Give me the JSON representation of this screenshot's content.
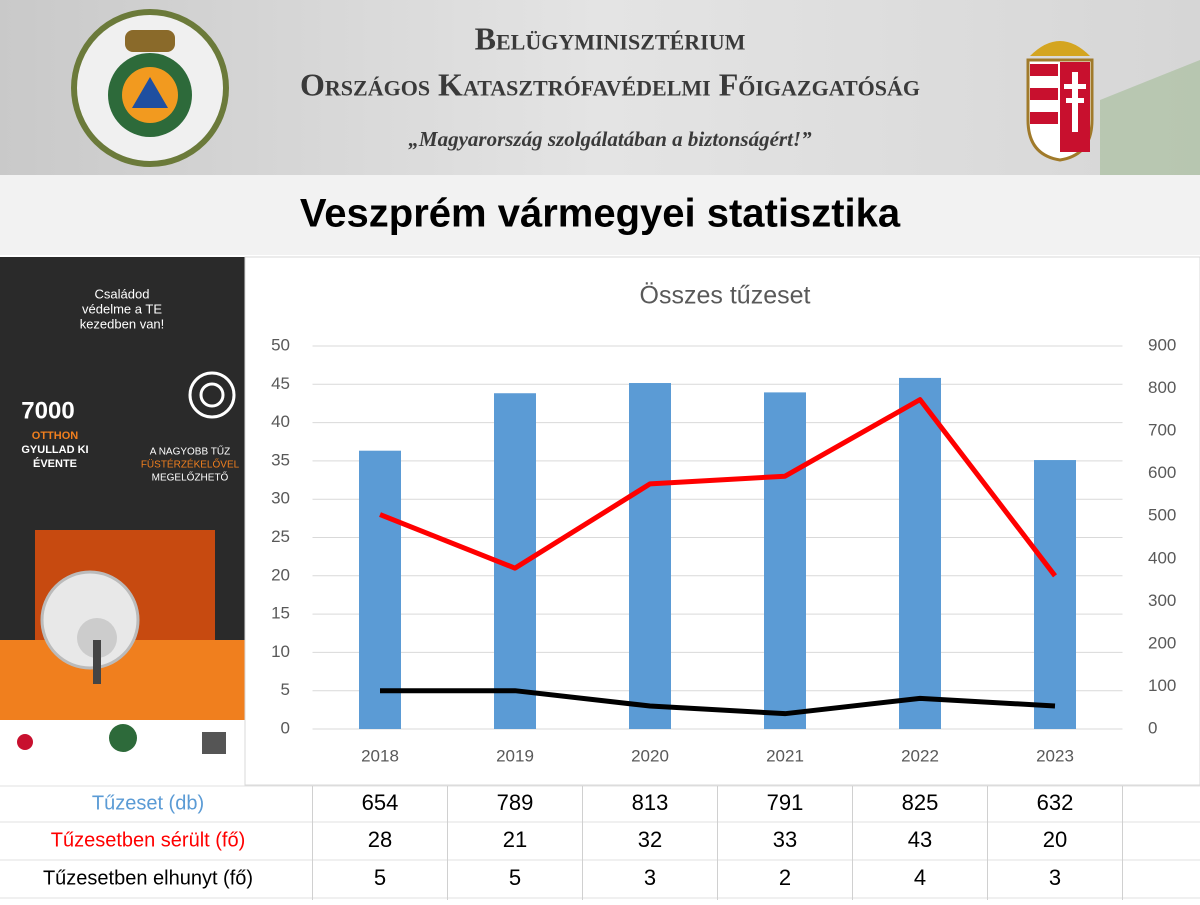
{
  "header": {
    "ministry": "Belügyminisztérium",
    "directorate": "Országos Katasztrófavédelmi Főigazgatóság",
    "motto": "„Magyarország szolgálatában a biztonságért!”"
  },
  "slide_title": "Veszprém vármegyei statisztika",
  "poster": {
    "slogan_lines": [
      "Családod",
      "védelme a TE",
      "kezedben van!"
    ],
    "count": "7000",
    "count_lines": [
      "OTTHON",
      "GYULLAD KI",
      "ÉVENTE"
    ],
    "tip_lines": [
      "A NAGYOBB TŰZ",
      "FÜSTÉRZÉKELŐVEL",
      "MEGELŐZHETŐ"
    ]
  },
  "chart_data": {
    "type": "bar",
    "title": "Összes tűzeset",
    "categories": [
      "2018",
      "2019",
      "2020",
      "2021",
      "2022",
      "2023"
    ],
    "series": [
      {
        "name": "Tűzeset (db)",
        "color": "#5b9bd5",
        "values": [
          654,
          789,
          813,
          791,
          825,
          632
        ],
        "axis": "y2"
      },
      {
        "name": "Tűzesetben sérült (fő)",
        "color": "#ff0000",
        "type": "line",
        "values": [
          28,
          21,
          32,
          33,
          43,
          20
        ]
      },
      {
        "name": "Tűzesetben elhunyt (fő)",
        "color": "#000000",
        "type": "line",
        "values": [
          5,
          5,
          3,
          2,
          4,
          3
        ]
      }
    ],
    "ylim": [
      0,
      50
    ],
    "yticks": [
      0,
      5,
      10,
      15,
      20,
      25,
      30,
      35,
      40,
      45,
      50
    ],
    "y2lim": [
      0,
      900
    ],
    "y2ticks": [
      0,
      100,
      200,
      300,
      400,
      500,
      600,
      700,
      800,
      900
    ],
    "grid": true
  }
}
